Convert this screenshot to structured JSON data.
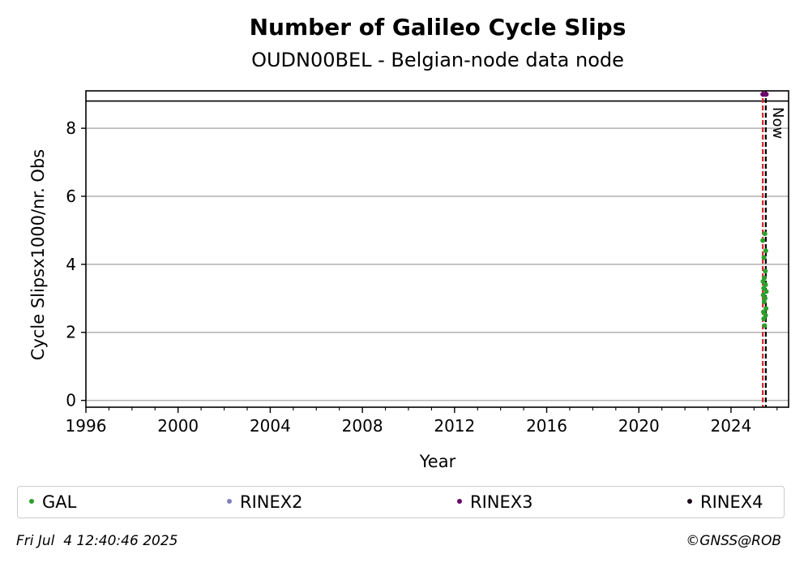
{
  "chart_data": {
    "type": "scatter",
    "title": "Number of Galileo Cycle Slips",
    "subtitle": "OUDN00BEL - Belgian-node data node",
    "xlabel": "Year",
    "ylabel": "Cycle Slipsx1000/nr. Obs",
    "xlim": [
      1996,
      2026.5
    ],
    "ylim": [
      -0.2,
      9.1
    ],
    "xticks": [
      1996,
      2000,
      2004,
      2008,
      2012,
      2016,
      2020,
      2024
    ],
    "yticks": [
      0,
      2,
      4,
      6,
      8
    ],
    "grid": "y",
    "upper_band_line": 8.8,
    "now_line": {
      "x": 2025.51,
      "label": "Now"
    },
    "rinex3_start_line": 2025.38,
    "series": [
      {
        "name": "GAL",
        "color": "#2ca02c",
        "points": [
          {
            "x": 2025.38,
            "y": 4.7
          },
          {
            "x": 2025.39,
            "y": 3.5
          },
          {
            "x": 2025.4,
            "y": 3.1
          },
          {
            "x": 2025.41,
            "y": 2.6
          },
          {
            "x": 2025.42,
            "y": 3.3
          },
          {
            "x": 2025.42,
            "y": 2.4
          },
          {
            "x": 2025.43,
            "y": 4.2
          },
          {
            "x": 2025.44,
            "y": 2.9
          },
          {
            "x": 2025.45,
            "y": 3.6
          },
          {
            "x": 2025.46,
            "y": 2.2
          },
          {
            "x": 2025.47,
            "y": 4.9
          },
          {
            "x": 2025.48,
            "y": 3.0
          },
          {
            "x": 2025.49,
            "y": 3.8
          },
          {
            "x": 2025.5,
            "y": 2.5
          },
          {
            "x": 2025.5,
            "y": 3.4
          },
          {
            "x": 2025.51,
            "y": 4.4
          },
          {
            "x": 2025.52,
            "y": 2.7
          },
          {
            "x": 2025.53,
            "y": 3.2
          }
        ]
      },
      {
        "name": "RINEX2",
        "color": "#8080c0",
        "points": []
      },
      {
        "name": "RINEX3",
        "color": "#6b006b",
        "points": [
          {
            "x": 2025.38,
            "y": 9.0
          },
          {
            "x": 2025.42,
            "y": 9.0
          },
          {
            "x": 2025.46,
            "y": 9.0
          },
          {
            "x": 2025.5,
            "y": 9.0
          },
          {
            "x": 2025.53,
            "y": 9.0
          }
        ]
      },
      {
        "name": "RINEX4",
        "color": "#1a0a1a",
        "points": []
      }
    ]
  },
  "footer": {
    "timestamp": "Fri Jul  4 12:40:46 2025",
    "credit": "©GNSS@ROB"
  }
}
